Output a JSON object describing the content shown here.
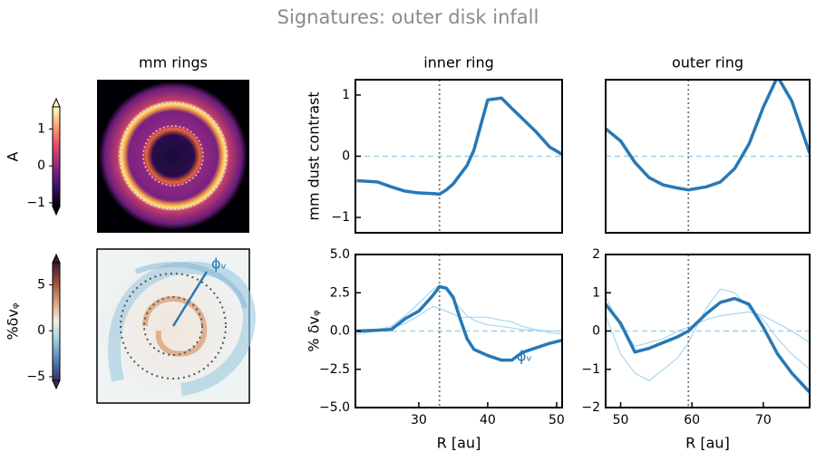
{
  "figure_title": "Signatures: outer disk infall",
  "chart_data": [
    {
      "type": "colorbar",
      "label": "A",
      "ylim": [
        -1.1,
        1.6
      ],
      "yticks": [
        1,
        0,
        {
          "value": -1,
          "label": "−1"
        }
      ],
      "colors": [
        "#000004",
        "#3b0f70",
        "#8c2981",
        "#de4968",
        "#fe9f6d",
        "#fcfdbf"
      ]
    },
    {
      "type": "image",
      "title": "mm rings"
    },
    {
      "type": "colorbar",
      "label": "%δvᵩ",
      "ylim": [
        -5.4,
        7.4
      ],
      "yticks": [
        5,
        0,
        {
          "value": -5,
          "label": "−5"
        }
      ],
      "colors": [
        "#3b2d6b",
        "#4f7fb8",
        "#9cc9dd",
        "#f3efe8",
        "#d9a27a",
        "#9c4d3a",
        "#3d1a2a"
      ]
    },
    {
      "type": "image",
      "annotation": "ϕᵥ"
    },
    {
      "type": "line",
      "title": "inner ring",
      "ylabel": "mm dust contrast",
      "color": "#2878b5",
      "x": [
        21,
        24,
        26,
        28,
        30,
        32,
        33,
        34,
        35,
        36,
        37,
        38,
        40,
        42,
        43.5,
        45,
        47,
        49,
        50.8
      ],
      "values": [
        -0.4,
        -0.42,
        -0.5,
        -0.57,
        -0.6,
        -0.61,
        -0.62,
        -0.55,
        -0.45,
        -0.3,
        -0.15,
        0.1,
        0.92,
        0.95,
        0.78,
        0.62,
        0.4,
        0.15,
        0.03
      ],
      "xlim": [
        20.8,
        50.8
      ],
      "ylim": [
        -1.25,
        1.25
      ],
      "yticks": [
        {
          "value": -1,
          "label": "−1"
        },
        0,
        1
      ],
      "hline": 0,
      "vline": 33
    },
    {
      "type": "line",
      "title": "outer ring",
      "color": "#2878b5",
      "x": [
        47.9,
        50,
        52,
        54,
        56,
        58,
        59.5,
        62,
        64,
        66,
        68,
        70,
        72,
        74,
        76.5
      ],
      "values": [
        0.45,
        0.25,
        -0.1,
        -0.35,
        -0.47,
        -0.52,
        -0.55,
        -0.5,
        -0.42,
        -0.2,
        0.2,
        0.8,
        1.3,
        0.9,
        0.05
      ],
      "xlim": [
        47.9,
        76.5
      ],
      "ylim": [
        -1.25,
        1.25
      ],
      "hline": 0,
      "vline": 59.5
    },
    {
      "type": "line",
      "ylabel": "% δvᵩ",
      "xlabel": "R [au]",
      "color": "#2878b5",
      "annotation": "ϕᵥ",
      "x": [
        21,
        24,
        26,
        28,
        30,
        32,
        33,
        34,
        35,
        36,
        37,
        38,
        40,
        42,
        43.5,
        45,
        47,
        49,
        50.8
      ],
      "values": [
        0,
        0.05,
        0.1,
        0.8,
        1.3,
        2.3,
        2.9,
        2.8,
        2.2,
        0.8,
        -0.5,
        -1.2,
        -1.6,
        -1.9,
        -1.9,
        -1.4,
        -1.1,
        -0.8,
        -0.6
      ],
      "background_series": [
        {
          "color": "#a8d8f0",
          "values": [
            0,
            0.1,
            0.3,
            1.0,
            1.8,
            2.7,
            3.0,
            2.7,
            2.0,
            1.5,
            1.0,
            0.7,
            0.4,
            0.3,
            0.2,
            0.1,
            0.05,
            0,
            0
          ]
        },
        {
          "color": "#a8d8f0",
          "values": [
            -0.2,
            0,
            0.2,
            0.5,
            1.0,
            1.6,
            1.5,
            1.3,
            1.1,
            0.9,
            0.9,
            0.9,
            0.9,
            0.7,
            0.6,
            0.3,
            0.1,
            -0.1,
            -0.2
          ]
        }
      ],
      "xlim": [
        20.8,
        50.8
      ],
      "ylim": [
        -5,
        5
      ],
      "xticks": [
        30,
        40,
        50
      ],
      "yticks": [
        {
          "value": -5,
          "label": "−5.0"
        },
        {
          "value": -2.5,
          "label": "−2.5"
        },
        {
          "value": 0,
          "label": "0.0"
        },
        2.5,
        {
          "value": 5,
          "label": "5.0"
        }
      ],
      "hline": 0,
      "vline": 33
    },
    {
      "type": "line",
      "xlabel": "R [au]",
      "color": "#2878b5",
      "x": [
        47.9,
        50,
        52,
        54,
        56,
        58,
        59.5,
        62,
        64,
        66,
        68,
        70,
        72,
        74,
        76.5
      ],
      "values": [
        0.7,
        0.2,
        -0.55,
        -0.45,
        -0.3,
        -0.15,
        0,
        0.45,
        0.75,
        0.85,
        0.7,
        0.1,
        -0.6,
        -1.1,
        -1.6
      ],
      "background_series": [
        {
          "color": "#a8d8f0",
          "values": [
            0.9,
            0.1,
            -0.4,
            -0.3,
            -0.2,
            0,
            0.1,
            0.3,
            0.4,
            0.45,
            0.5,
            0.4,
            0.2,
            0,
            -0.3
          ]
        },
        {
          "color": "#a8d8f0",
          "values": [
            0.4,
            -0.6,
            -1.1,
            -1.3,
            -1,
            -0.7,
            -0.3,
            0.6,
            1.1,
            1.0,
            0.6,
            0.3,
            -0.2,
            -0.6,
            -1.0
          ]
        }
      ],
      "xlim": [
        47.9,
        76.5
      ],
      "ylim": [
        -2,
        2
      ],
      "xticks": [
        50,
        60,
        70
      ],
      "yticks": [
        {
          "value": -2,
          "label": "−2"
        },
        {
          "value": -1,
          "label": "−1"
        },
        0,
        1,
        2
      ],
      "hline": 0,
      "vline": 59.5
    }
  ]
}
